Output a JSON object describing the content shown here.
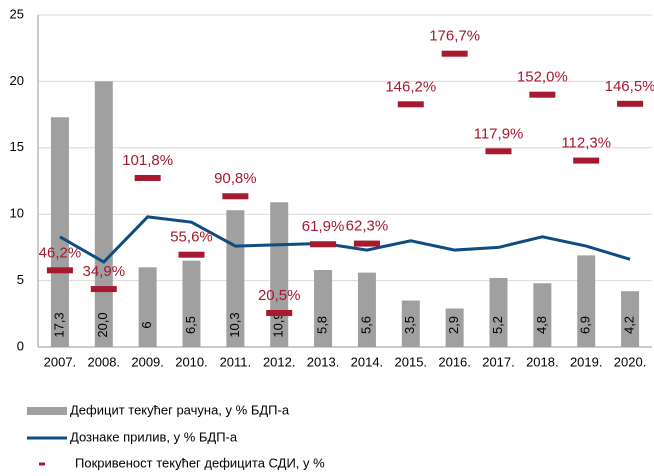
{
  "chart_data": {
    "type": "bar",
    "categories": [
      "2007.",
      "2008.",
      "2009.",
      "2010.",
      "2011.",
      "2012.",
      "2013.",
      "2014.",
      "2015.",
      "2016.",
      "2017.",
      "2018.",
      "2019.",
      "2020."
    ],
    "series": [
      {
        "name": "Дефицит текућег рачуна, у % БДП-а",
        "type": "bar",
        "color": "#a0a0a0",
        "values": [
          17.3,
          20.0,
          6,
          6.5,
          10.3,
          10.9,
          5.8,
          5.6,
          3.5,
          2.9,
          5.2,
          4.8,
          6.9,
          4.2
        ],
        "value_labels": [
          "17,3",
          "20,0",
          "6",
          "6,5",
          "10,3",
          "10,9",
          "5,8",
          "5,6",
          "3,5",
          "2,9",
          "5,2",
          "4,8",
          "6,9",
          "4,2"
        ]
      },
      {
        "name": "Дознаке прилив, у % БДП-а",
        "type": "line",
        "color": "#0f4c81",
        "values": [
          8.3,
          6.4,
          9.8,
          9.4,
          7.6,
          7.7,
          7.8,
          7.3,
          8.0,
          7.3,
          7.5,
          8.3,
          7.6,
          6.6
        ]
      },
      {
        "name": "Покривеност текућег дефицита СДИ, у %",
        "type": "marker",
        "color": "#a6192e",
        "axis": "y2",
        "values": [
          46.2,
          34.9,
          101.8,
          55.6,
          90.8,
          20.5,
          61.9,
          62.3,
          146.2,
          176.7,
          117.9,
          152.0,
          112.3,
          146.5
        ],
        "value_labels": [
          "46,2%",
          "34,9%",
          "101,8%",
          "55,6%",
          "90,8%",
          "20,5%",
          "61,9%",
          "62,3%",
          "146,2%",
          "176,7%",
          "117,9%",
          "152,0%",
          "112,3%",
          "146,5%"
        ]
      }
    ],
    "ylim": [
      0,
      25
    ],
    "yticks": [
      0,
      5,
      10,
      15,
      20,
      25
    ],
    "y2lim": [
      0,
      200
    ],
    "grid": true
  }
}
